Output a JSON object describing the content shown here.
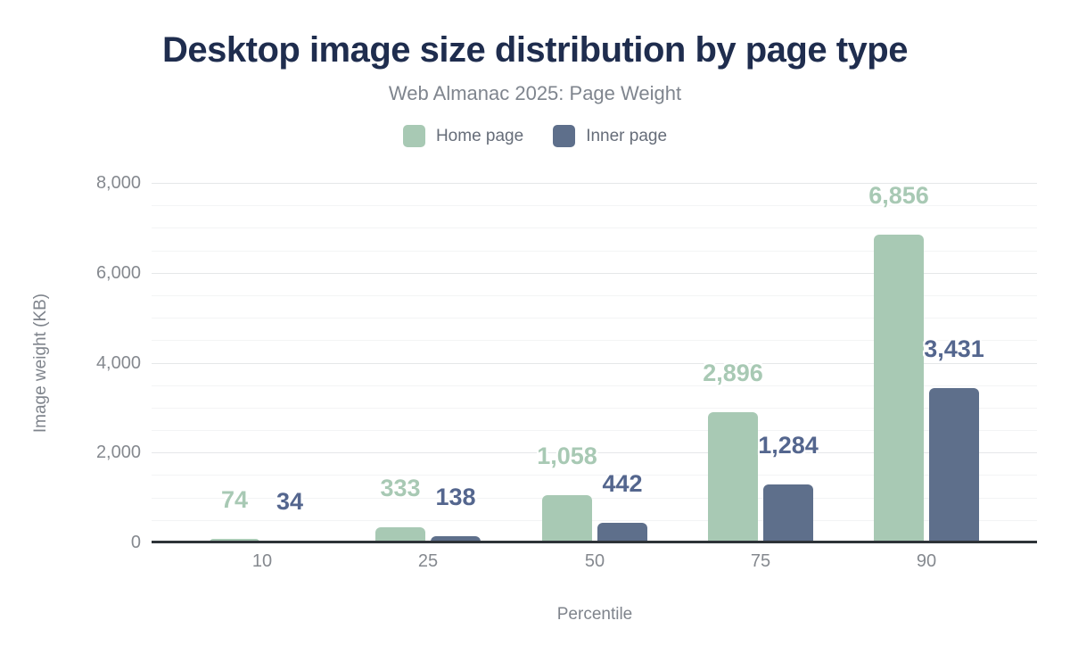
{
  "header": {
    "title": "Desktop image size distribution by page type",
    "subtitle": "Web Almanac 2025: Page Weight"
  },
  "colors": {
    "background": "#ffffff",
    "title_text": "#1f2d4e",
    "subtitle_text": "#7f858e",
    "legend_text": "#666d79",
    "tick_text": "#85898f",
    "axis_title_text": "#7f848c",
    "axis_line": "#2e3338",
    "gridline_major": "#e5e7e9",
    "gridline_minor": "#f3f4f5",
    "home_page_series": "#a8c9b4",
    "inner_page_series": "#5e6f8b",
    "inner_page_label": "#54668e"
  },
  "chart_data": {
    "type": "bar",
    "title": "Desktop image size distribution by page type",
    "subtitle": "Web Almanac 2025: Page Weight",
    "xlabel": "Percentile",
    "ylabel": "Image weight (KB)",
    "categories": [
      "10",
      "25",
      "50",
      "75",
      "90"
    ],
    "series": [
      {
        "name": "Home page",
        "color": "#a8c9b4",
        "label_color": "#a8c9b4",
        "values": [
          74,
          333,
          1058,
          2896,
          6856
        ],
        "labels": [
          "74",
          "333",
          "1,058",
          "2,896",
          "6,856"
        ]
      },
      {
        "name": "Inner page",
        "color": "#5e6f8b",
        "label_color": "#54668e",
        "values": [
          34,
          138,
          442,
          1284,
          3431
        ],
        "labels": [
          "34",
          "138",
          "442",
          "1,284",
          "3,431"
        ]
      }
    ],
    "ylim": [
      0,
      8000
    ],
    "yticks": [
      {
        "value": 0,
        "label": "0"
      },
      {
        "value": 2000,
        "label": "2,000"
      },
      {
        "value": 4000,
        "label": "4,000"
      },
      {
        "value": 6000,
        "label": "6,000"
      },
      {
        "value": 8000,
        "label": "8,000"
      }
    ],
    "minor_tick_step": 500,
    "grid": true,
    "legend_position": "top"
  }
}
